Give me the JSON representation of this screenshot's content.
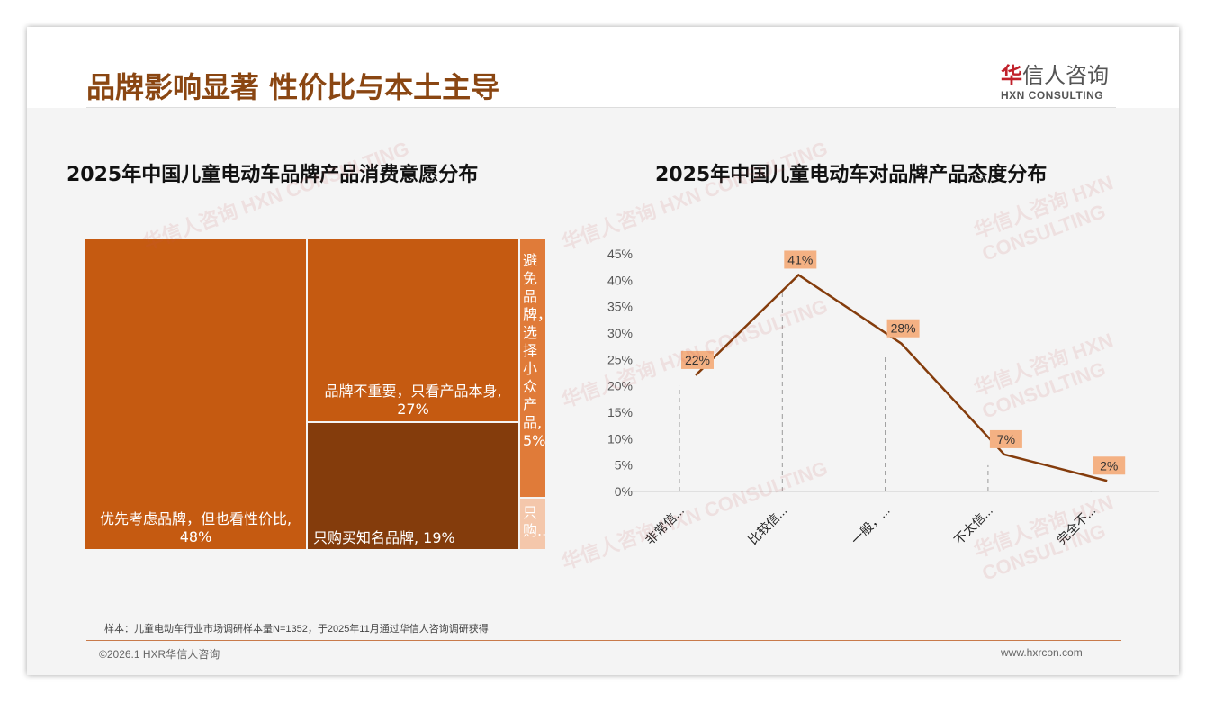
{
  "header": {
    "title": "品牌影响显著 性价比与本土主导",
    "logo_cn_accent": "华",
    "logo_cn": "信人咨询",
    "logo_en": "HXN CONSULTING"
  },
  "watermark": "华信人咨询 HXN CONSULTING",
  "chart_data": [
    {
      "type": "treemap",
      "title": "2025年中国儿童电动车品牌产品消费意愿分布",
      "items": [
        {
          "label": "优先考虑品牌，但也看性价比, 48%",
          "value": 48,
          "color": "#c55a11"
        },
        {
          "label": "品牌不重要，只看产品本身, 27%",
          "value": 27,
          "color": "#c55a11"
        },
        {
          "label": "只购买知名品牌, 19%",
          "value": 19,
          "color": "#843c0c"
        },
        {
          "label": "避免品牌，选择小众产品, 5%",
          "value": 5,
          "color": "#e07b39"
        },
        {
          "label": "只购...",
          "value": 1,
          "color": "#f4c7ab"
        }
      ]
    },
    {
      "type": "line",
      "title": "2025年中国儿童电动车对品牌产品态度分布",
      "categories": [
        "非常信...",
        "比较信...",
        "一般，...",
        "不太信...",
        "完全不..."
      ],
      "values": [
        22,
        41,
        28,
        7,
        2
      ],
      "data_labels": [
        "22%",
        "41%",
        "28%",
        "7%",
        "2%"
      ],
      "yticks": [
        "0%",
        "5%",
        "10%",
        "15%",
        "20%",
        "25%",
        "30%",
        "35%",
        "40%",
        "45%"
      ],
      "ylim": [
        0,
        45
      ],
      "color": "#843c0c",
      "label_bg": "#f4b183"
    }
  ],
  "footer": {
    "note": "样本：儿童电动车行业市场调研样本量N=1352，于2025年11月通过华信人咨询调研获得",
    "copyright": "©2026.1 HXR华信人咨询",
    "site": "www.hxrcon.com"
  }
}
